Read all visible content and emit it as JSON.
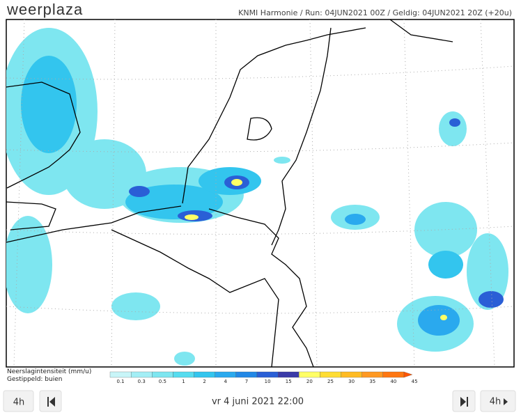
{
  "header": {
    "logo": "weerplaza",
    "model": "KNMI Harmonie / Run: 04JUN2021 00Z / Geldig: 04JUN2021 20Z (+20u)"
  },
  "legend": {
    "title": "Neerslagintensiteit (mm/u)",
    "note": "Gestippeld: buien",
    "labels": [
      "0.1",
      "0.3",
      "0.5",
      "1",
      "2",
      "4",
      "7",
      "10",
      "15",
      "20",
      "25",
      "30",
      "35",
      "40",
      "45"
    ],
    "colors": [
      "#c8f5f8",
      "#a3eef5",
      "#7ee6f0",
      "#56dcef",
      "#33c5ee",
      "#2aa9ee",
      "#2288e6",
      "#2a5fd6",
      "#3a3aa8",
      "#ffff66",
      "#ffdd33",
      "#ffbb22",
      "#ff9922",
      "#ff7711",
      "#ff5500"
    ]
  },
  "nav": {
    "back_step": "4h",
    "time": "vr 4 juni 2021 22:00",
    "forward_step": "4h"
  }
}
